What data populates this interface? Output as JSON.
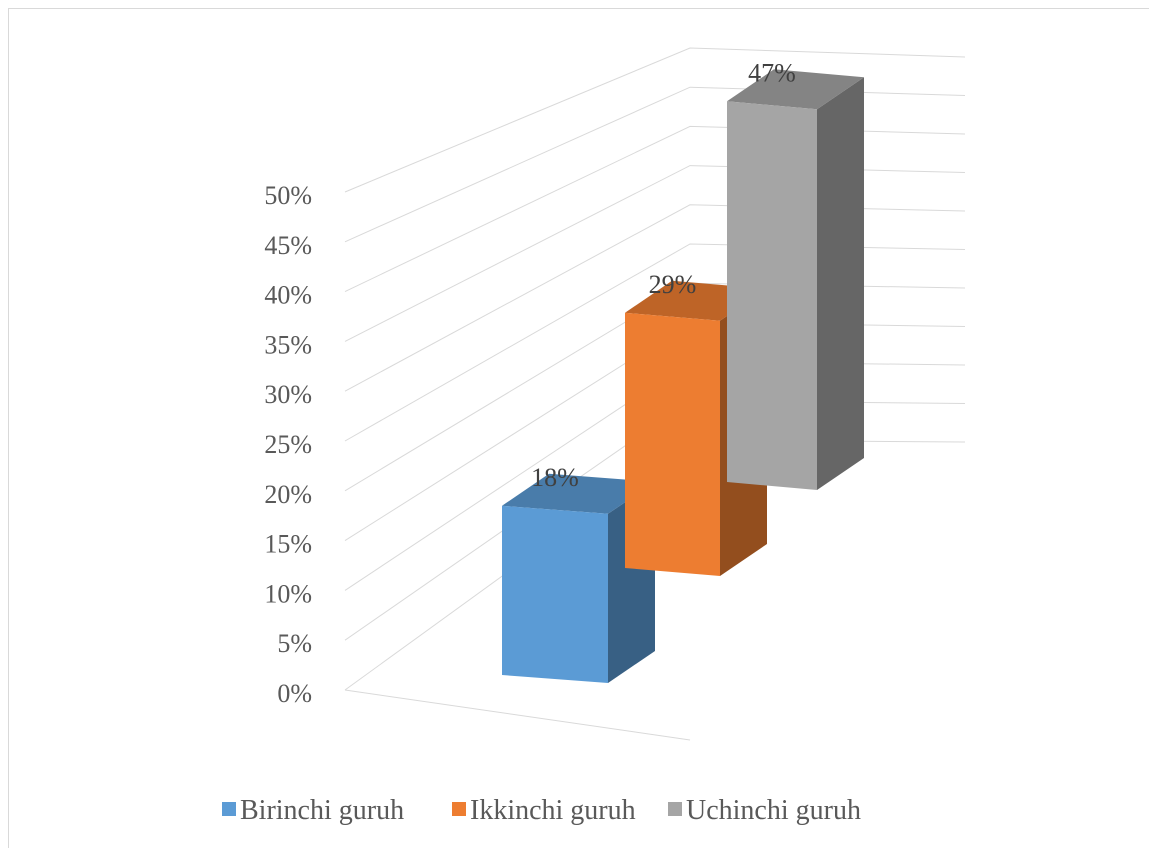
{
  "chart_data": {
    "type": "bar3d",
    "series": [
      {
        "name": "Birinchi guruh",
        "color": "#5b9bd5",
        "values": [
          18
        ],
        "value_labels": [
          "18%"
        ]
      },
      {
        "name": "Ikkinchi guruh",
        "color": "#ed7d31",
        "values": [
          29
        ],
        "value_labels": [
          "29%"
        ]
      },
      {
        "name": "Uchinchi guruh",
        "color": "#a5a5a5",
        "values": [
          47
        ],
        "value_labels": [
          "47%"
        ]
      }
    ],
    "ylim": [
      0,
      50
    ],
    "yticks": [
      {
        "value": 0,
        "label": "0%"
      },
      {
        "value": 5,
        "label": "5%"
      },
      {
        "value": 10,
        "label": "10%"
      },
      {
        "value": 15,
        "label": "15%"
      },
      {
        "value": 20,
        "label": "20%"
      },
      {
        "value": 25,
        "label": "25%"
      },
      {
        "value": 30,
        "label": "30%"
      },
      {
        "value": 35,
        "label": "35%"
      },
      {
        "value": 40,
        "label": "40%"
      },
      {
        "value": 45,
        "label": "45%"
      },
      {
        "value": 50,
        "label": "50%"
      }
    ],
    "grid": true,
    "legend": "bottom"
  }
}
